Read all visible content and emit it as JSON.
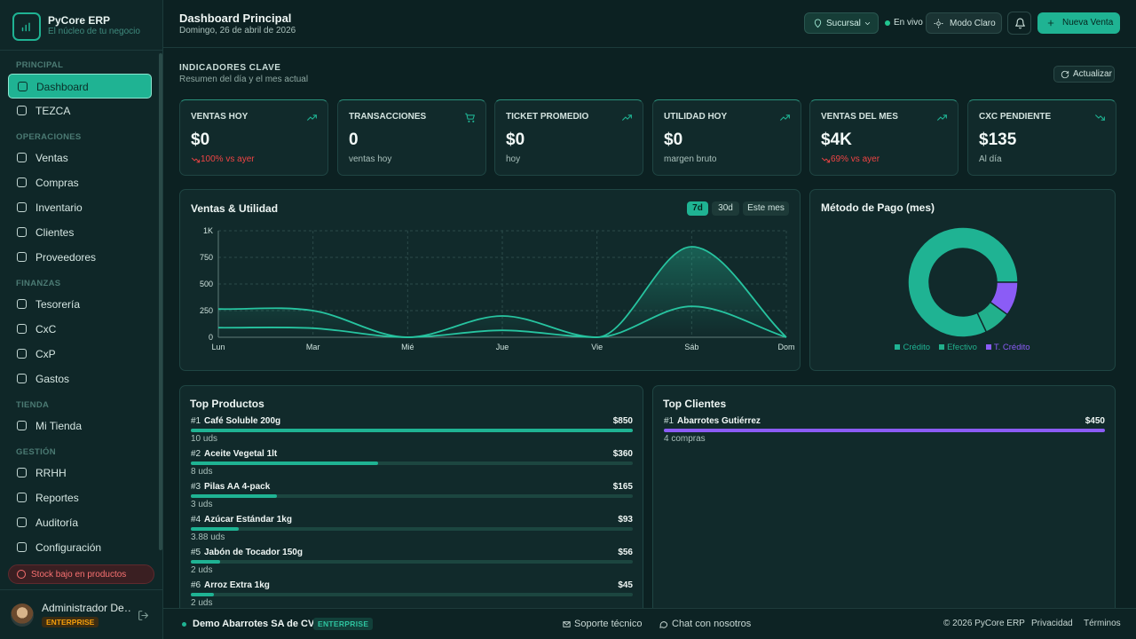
{
  "sidebar": {
    "brand": {
      "name": "PyCore ERP",
      "tagline": "El núcleo de tu negocio"
    },
    "sections": [
      {
        "title": "PRINCIPAL",
        "items": [
          "Dashboard",
          "TEZCA"
        ]
      },
      {
        "title": "OPERACIONES",
        "items": [
          "Ventas",
          "Compras",
          "Inventario",
          "Clientes",
          "Proveedores"
        ]
      },
      {
        "title": "FINANZAS",
        "items": [
          "Tesorería",
          "CxC",
          "CxP",
          "Gastos"
        ]
      },
      {
        "title": "TIENDA",
        "items": [
          "Mi Tienda"
        ]
      },
      {
        "title": "GESTIÓN",
        "items": [
          "RRHH",
          "Reportes",
          "Auditoría",
          "Configuración"
        ]
      }
    ],
    "alert": "Stock bajo en productos",
    "user": {
      "name": "Administrador De…",
      "badge": "ENTERPRISE"
    }
  },
  "header": {
    "title": "Dashboard Principal",
    "date": "Domingo, 26 de abril de 2026",
    "branch": "Sucursal",
    "status": "En vivo",
    "theme": "Modo Claro",
    "new_sale": "Nueva Venta"
  },
  "indicators": {
    "title": "INDICADORES CLAVE",
    "subtitle": "Resumen del día y el mes actual",
    "refresh": "Actualizar",
    "cards": [
      {
        "label": "VENTAS HOY",
        "value": "$0",
        "note": "100% vs ayer",
        "trend": "down",
        "icon": "trend-up"
      },
      {
        "label": "TRANSACCIONES",
        "value": "0",
        "note": "ventas hoy",
        "icon": "cart"
      },
      {
        "label": "TICKET PROMEDIO",
        "value": "$0",
        "note": "hoy",
        "icon": "trend-up"
      },
      {
        "label": "UTILIDAD HOY",
        "value": "$0",
        "note": "margen bruto",
        "icon": "trend-up"
      },
      {
        "label": "VENTAS DEL MES",
        "value": "$4K",
        "note": "69% vs ayer",
        "trend": "down",
        "icon": "trend-up"
      },
      {
        "label": "CXC PENDIENTE",
        "value": "$135",
        "note": "Al día",
        "icon": "trend-down"
      }
    ]
  },
  "chart_data": [
    {
      "type": "line",
      "title": "Ventas & Utilidad",
      "ranges": [
        "7d",
        "30d",
        "Este mes"
      ],
      "categories": [
        "Lun",
        "Mar",
        "Mié",
        "Jue",
        "Vie",
        "Sáb",
        "Dom"
      ],
      "series": [
        {
          "color": "#27c4a0",
          "area": true,
          "values": [
            265,
            250,
            0,
            200,
            0,
            850,
            0
          ]
        },
        {
          "color": "#27c4a0",
          "values": [
            90,
            85,
            0,
            65,
            0,
            290,
            0
          ]
        }
      ],
      "ylim": [
        0,
        1000
      ],
      "yticks": [
        0,
        250,
        500,
        750,
        {
          "value": 1000,
          "label": "1K"
        }
      ],
      "grid": true
    },
    {
      "type": "pie",
      "title": "Método de Pago (mes)",
      "categories": [
        "Crédito",
        "Efectivo",
        "T. Crédito"
      ],
      "values": [
        82,
        8,
        10
      ],
      "colors": [
        "#1fb393",
        "#22b08c",
        "#8b5cf6"
      ],
      "donut": true
    }
  ],
  "top_products": {
    "title": "Top Productos",
    "items": [
      {
        "rank": "#1",
        "name": "Café Soluble 200g",
        "value": 850,
        "value_label": "$850",
        "units": "10 uds"
      },
      {
        "rank": "#2",
        "name": "Aceite Vegetal 1lt",
        "value": 360,
        "value_label": "$360",
        "units": "8 uds"
      },
      {
        "rank": "#3",
        "name": "Pilas AA 4-pack",
        "value": 165,
        "value_label": "$165",
        "units": "3 uds"
      },
      {
        "rank": "#4",
        "name": "Azúcar Estándar 1kg",
        "value": 93,
        "value_label": "$93",
        "units": "3.88 uds"
      },
      {
        "rank": "#5",
        "name": "Jabón de Tocador 150g",
        "value": 56,
        "value_label": "$56",
        "units": "2 uds"
      },
      {
        "rank": "#6",
        "name": "Arroz Extra 1kg",
        "value": 45,
        "value_label": "$45",
        "units": "2 uds"
      }
    ]
  },
  "top_clients": {
    "title": "Top Clientes",
    "items": [
      {
        "rank": "#1",
        "name": "Abarrotes Gutiérrez",
        "value": 450,
        "value_label": "$450",
        "units": "4 compras"
      }
    ]
  },
  "footer": {
    "company": "Demo Abarrotes SA de CV",
    "plan": "ENTERPRISE",
    "support": "Soporte técnico",
    "chat": "Chat con nosotros",
    "copyright": "© 2026 PyCore ERP",
    "privacy": "Privacidad",
    "terms": "Términos"
  }
}
